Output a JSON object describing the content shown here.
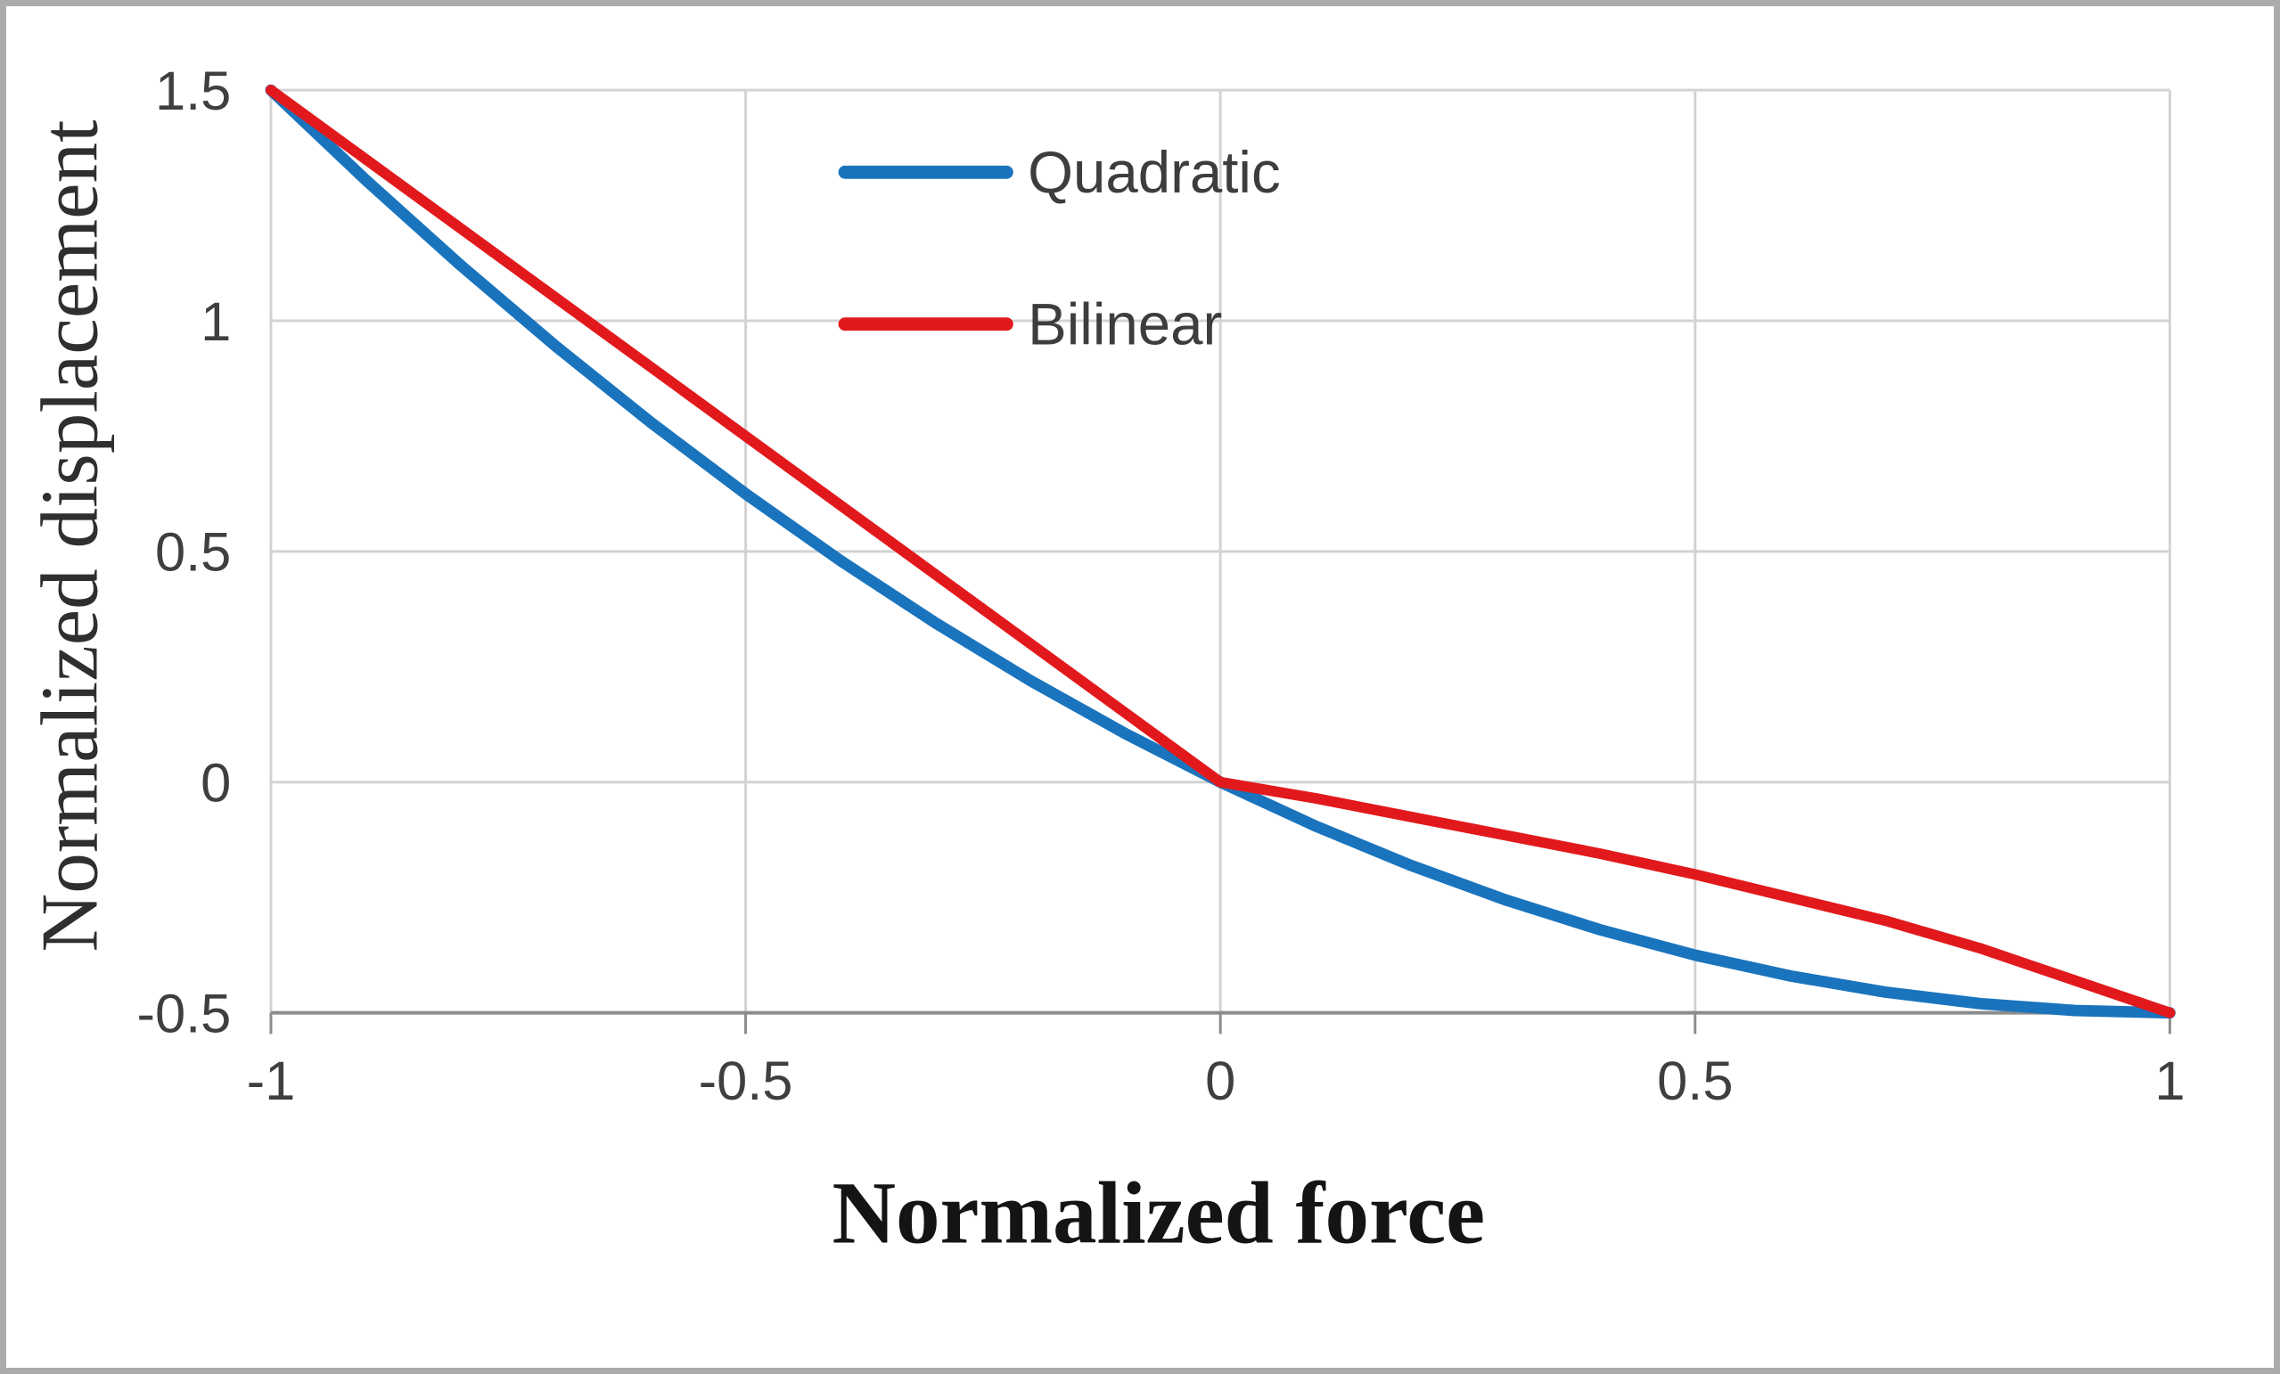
{
  "chart_data": {
    "type": "line",
    "title": "",
    "xlabel": "Normalized force",
    "ylabel": "Normalized displacement",
    "xlim": [
      -1,
      1
    ],
    "ylim": [
      -0.5,
      1.5
    ],
    "grid": true,
    "legend_position": "top-center",
    "x_ticks": [
      -1,
      -0.5,
      0,
      0.5,
      1
    ],
    "x_tick_labels": [
      "-1",
      "-0.5",
      "0",
      "0.5",
      "1"
    ],
    "y_ticks": [
      -0.5,
      0,
      0.5,
      1,
      1.5
    ],
    "y_tick_labels": [
      "-0.5",
      "0",
      "0.5",
      "1",
      "1.5"
    ],
    "series": [
      {
        "name": "Quadratic",
        "color": "#1a74bd",
        "points": [
          [
            -1,
            1.5
          ],
          [
            -0.9,
            1.305
          ],
          [
            -0.8,
            1.12
          ],
          [
            -0.7,
            0.945
          ],
          [
            -0.6,
            0.78
          ],
          [
            -0.5,
            0.625
          ],
          [
            -0.4,
            0.48
          ],
          [
            -0.3,
            0.345
          ],
          [
            -0.2,
            0.22
          ],
          [
            -0.1,
            0.105
          ],
          [
            0,
            0
          ],
          [
            0.1,
            -0.095
          ],
          [
            0.2,
            -0.18
          ],
          [
            0.3,
            -0.255
          ],
          [
            0.4,
            -0.32
          ],
          [
            0.5,
            -0.375
          ],
          [
            0.6,
            -0.42
          ],
          [
            0.7,
            -0.455
          ],
          [
            0.8,
            -0.48
          ],
          [
            0.9,
            -0.495
          ],
          [
            1,
            -0.5
          ]
        ]
      },
      {
        "name": "Bilinear",
        "color": "#e2191c",
        "points": [
          [
            -1,
            1.5
          ],
          [
            0,
            0
          ],
          [
            0.1,
            -0.035
          ],
          [
            0.2,
            -0.075
          ],
          [
            0.3,
            -0.115
          ],
          [
            0.4,
            -0.155
          ],
          [
            0.5,
            -0.2
          ],
          [
            0.6,
            -0.25
          ],
          [
            0.7,
            -0.3
          ],
          [
            0.8,
            -0.36
          ],
          [
            0.9,
            -0.43
          ],
          [
            1,
            -0.5
          ]
        ]
      }
    ]
  }
}
